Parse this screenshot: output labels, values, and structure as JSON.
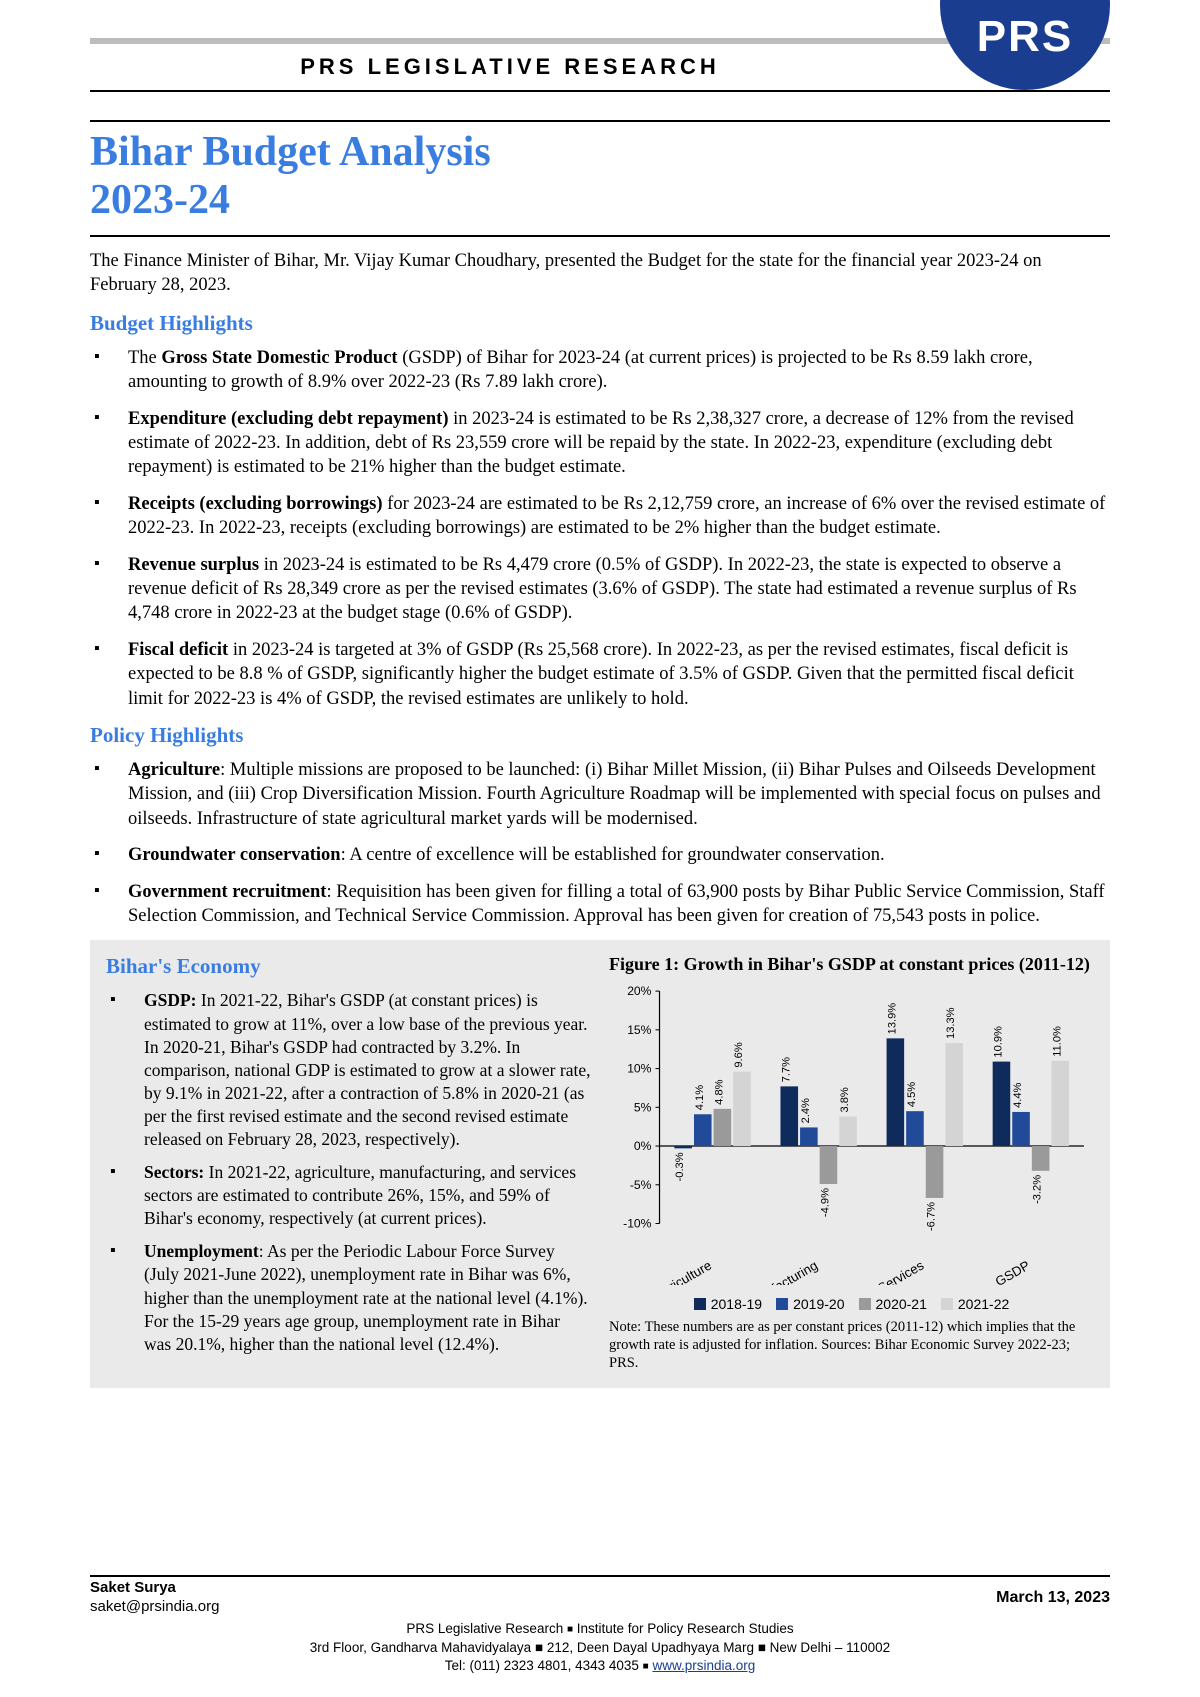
{
  "header": {
    "text": "PRS LEGISLATIVE RESEARCH",
    "logo_text": "PRS",
    "logo_bg": "#1a3d8f",
    "logo_fg": "#ffffff"
  },
  "title_line1": "Bihar Budget Analysis",
  "title_line2": "2023-24",
  "accent_color": "#3a7de0",
  "intro": "The Finance Minister of Bihar, Mr. Vijay Kumar Choudhary, presented the Budget for the state for the financial year 2023-24 on February 28, 2023.",
  "budget_section": {
    "heading": "Budget Highlights",
    "items": [
      {
        "lead": "The ",
        "bold": "Gross State Domestic Product",
        "rest": " (GSDP) of Bihar for 2023-24 (at current prices) is projected to be Rs 8.59 lakh crore, amounting to growth of 8.9% over 2022-23 (Rs 7.89 lakh crore)."
      },
      {
        "lead": "",
        "bold": "Expenditure (excluding debt repayment)",
        "rest": " in 2023-24 is estimated to be Rs 2,38,327 crore, a decrease of 12% from the revised estimate of 2022-23.  In addition, debt of Rs 23,559 crore will be repaid by the state.  In 2022-23, expenditure (excluding debt repayment) is estimated to be 21% higher than the budget estimate."
      },
      {
        "lead": "",
        "bold": "Receipts (excluding borrowings)",
        "rest": " for 2023-24 are estimated to be Rs 2,12,759 crore, an increase of 6% over the revised estimate of 2022-23.  In 2022-23, receipts (excluding borrowings) are estimated to be 2% higher than the budget estimate."
      },
      {
        "lead": "",
        "bold": "Revenue surplus",
        "rest": " in 2023-24 is estimated to be Rs 4,479 crore (0.5% of GSDP).  In 2022-23, the state is expected to observe a revenue deficit of Rs 28,349 crore as per the revised estimates (3.6% of GSDP).  The state had estimated a revenue surplus of Rs 4,748 crore in 2022-23 at the budget stage (0.6% of GSDP)."
      },
      {
        "lead": "",
        "bold": "Fiscal deficit",
        "rest": " in 2023-24 is targeted at 3% of GSDP (Rs 25,568 crore).  In 2022-23, as per the revised estimates, fiscal deficit is expected to be 8.8 % of GSDP, significantly higher the budget estimate of 3.5% of GSDP.  Given that the permitted fiscal deficit limit for 2022-23 is 4% of GSDP, the revised estimates are unlikely to hold."
      }
    ]
  },
  "policy_section": {
    "heading": "Policy Highlights",
    "items": [
      {
        "lead": "",
        "bold": "Agriculture",
        "rest": ":  Multiple missions are proposed to be launched: (i) Bihar Millet Mission, (ii) Bihar Pulses and Oilseeds Development Mission, and (iii) Crop Diversification Mission.  Fourth Agriculture Roadmap will be implemented with special focus on pulses and oilseeds.  Infrastructure of state agricultural market yards will be modernised."
      },
      {
        "lead": "",
        "bold": "Groundwater conservation",
        "rest": ":  A centre of excellence will be established for groundwater conservation."
      },
      {
        "lead": "",
        "bold": "Government recruitment",
        "rest": ":  Requisition has been given for filling a total of 63,900 posts by Bihar Public Service Commission, Staff Selection Commission, and Technical Service Commission.  Approval has been given for creation of 75,543 posts in police."
      }
    ]
  },
  "economy_section": {
    "heading": "Bihar's Economy",
    "items": [
      {
        "lead": "",
        "bold": "GSDP:",
        "rest": "  In 2021-22, Bihar's GSDP (at constant prices) is estimated to grow at 11%, over a low base of the previous year.  In 2020-21, Bihar's GSDP had contracted by 3.2%.  In comparison, national GDP is estimated to grow at a slower rate, by 9.1% in 2021-22, after a contraction of 5.8% in 2020-21 (as per the first revised estimate and the second revised estimate released on February 28, 2023, respectively)."
      },
      {
        "lead": "",
        "bold": "Sectors:",
        "rest": "  In 2021-22, agriculture, manufacturing, and services sectors are estimated to contribute 26%, 15%, and 59% of Bihar's economy, respectively (at current prices)."
      },
      {
        "lead": "",
        "bold": "Unemployment",
        "rest": ": As per the Periodic Labour Force Survey (July 2021-June 2022), unemployment rate in Bihar was 6%, higher than the unemployment rate at the national level (4.1%).  For the 15-29 years age group, unemployment rate in Bihar was 20.1%, higher than the national level (12.4%)."
      }
    ]
  },
  "figure": {
    "title": "Figure 1: Growth in Bihar's GSDP at constant prices (2011-12)",
    "type": "grouped-bar",
    "categories": [
      "Agriculture",
      "Manufacturing",
      "Services",
      "GSDP"
    ],
    "series": [
      {
        "name": "2018-19",
        "color": "#0f2b5b",
        "values": [
          -0.3,
          7.7,
          13.9,
          10.9
        ]
      },
      {
        "name": "2019-20",
        "color": "#214b99",
        "values": [
          4.1,
          2.4,
          4.5,
          4.4
        ]
      },
      {
        "name": "2020-21",
        "color": "#9a9a9a",
        "values": [
          4.8,
          -4.9,
          -6.7,
          -3.2
        ]
      },
      {
        "name": "2021-22",
        "color": "#d4d4d4",
        "values": [
          9.6,
          3.8,
          13.3,
          11.0
        ]
      }
    ],
    "ylim_min": -10,
    "ylim_max": 20,
    "ytick_step": 5,
    "y_labels": [
      "-10%",
      "-5%",
      "0%",
      "5%",
      "10%",
      "15%",
      "20%"
    ],
    "background_color": "#eaeaea",
    "axis_color": "#000000",
    "label_fontsize": 11,
    "note": "Note: These numbers are as per constant prices (2011-12) which implies that the growth rate is adjusted for inflation. Sources: Bihar Economic Survey 2022-23; PRS."
  },
  "footer": {
    "author_name": "Saket Surya",
    "author_email": "saket@prsindia.org",
    "date": "March 13, 2023",
    "org_line1_a": "PRS Legislative Research ",
    "org_line1_b": " Institute for Policy Research Studies",
    "org_line2": "3rd Floor, Gandharva Mahavidyalaya ■ 212, Deen Dayal Upadhyaya Marg ■ New Delhi – 110002",
    "org_line3_a": "Tel: (011) 2323 4801, 4343 4035 ",
    "org_link": "www.prsindia.org"
  }
}
